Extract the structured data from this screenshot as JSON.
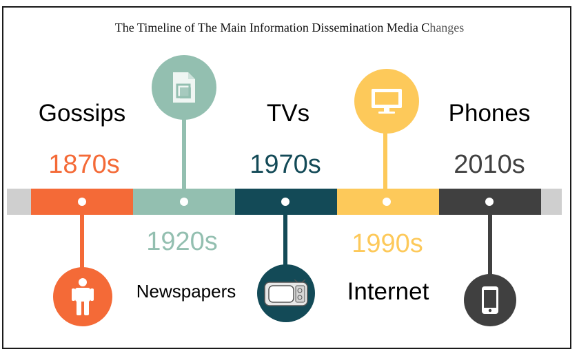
{
  "title": {
    "main": "The Timeline of The Main Information Dissemination Media C",
    "tail": "hanges"
  },
  "colors": {
    "gossips": "#f46a37",
    "newspapers": "#93bfb0",
    "tvs": "#134a57",
    "internet": "#fdc95a",
    "phones": "#404040",
    "track_end": "#cfcfcf"
  },
  "milestones": [
    {
      "name": "Gossips",
      "year": "1870s",
      "icon": "person-icon"
    },
    {
      "name": "Newspapers",
      "year": "1920s",
      "icon": "document-icon"
    },
    {
      "name": "TVs",
      "year": "1970s",
      "icon": "tv-set-icon"
    },
    {
      "name": "Internet",
      "year": "1990s",
      "icon": "monitor-icon"
    },
    {
      "name": "Phones",
      "year": "2010s",
      "icon": "smartphone-icon"
    }
  ]
}
